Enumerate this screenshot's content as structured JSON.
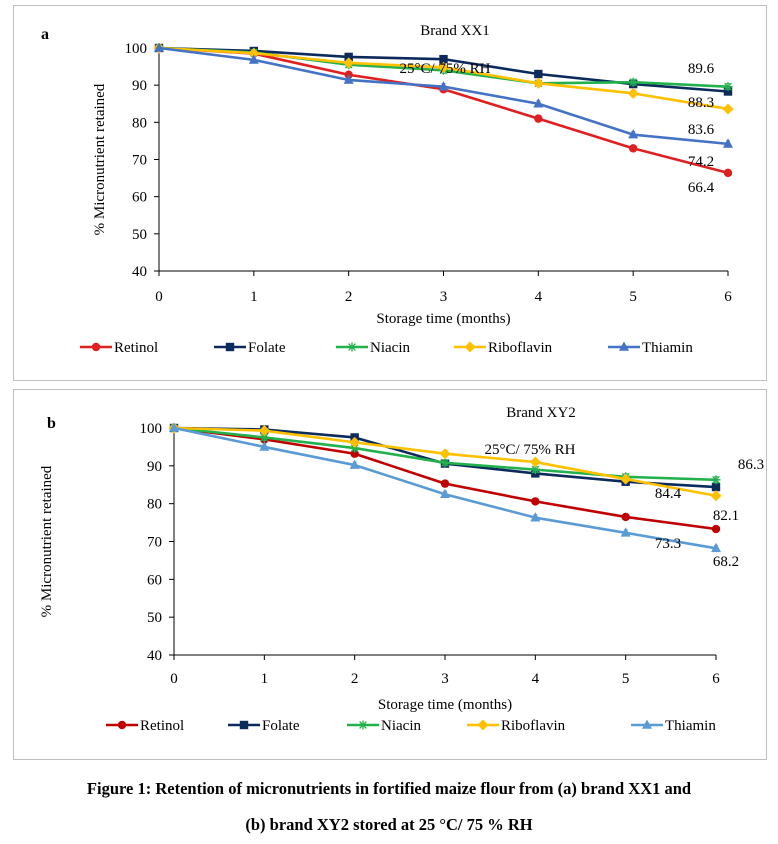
{
  "figure_caption": {
    "line1": "Figure 1: Retention of micronutrients in fortified maize flour from (a) brand XX1 and",
    "line2": "(b) brand XY2 stored at 25 °C/ 75 % RH"
  },
  "colors": {
    "Retinol": "#e02020",
    "Folate": "#0d2a5c",
    "Niacin": "#22b14c",
    "Riboflavin": "#ffc000",
    "Thiamin": "#4472c4",
    "Retinol_b": "#c00000",
    "Thiamin_b": "#5b9bd5"
  },
  "chart_data": [
    {
      "type": "line",
      "panel_letter": "a",
      "title": "Brand XX1",
      "annotation": "25°C/ 75% RH",
      "xlabel": "Storage time (months)",
      "ylabel": "% Micronutrient retained",
      "x": [
        0,
        1,
        2,
        3,
        4,
        5,
        6
      ],
      "xlim": [
        0,
        6
      ],
      "ylim": [
        40,
        100
      ],
      "yticks": [
        40,
        50,
        60,
        70,
        80,
        90,
        100
      ],
      "grid": false,
      "legend_position": "bottom",
      "series": [
        {
          "name": "Retinol",
          "marker": "circle",
          "color_key": "Retinol",
          "values": [
            100,
            98.5,
            92.8,
            88.9,
            81.0,
            73.0,
            66.4
          ]
        },
        {
          "name": "Folate",
          "marker": "square",
          "color_key": "Folate",
          "values": [
            100,
            99.2,
            97.6,
            97.0,
            93.0,
            90.3,
            88.3
          ]
        },
        {
          "name": "Niacin",
          "marker": "star",
          "color_key": "Niacin",
          "values": [
            100,
            98.8,
            95.5,
            94.0,
            90.5,
            90.8,
            89.6
          ]
        },
        {
          "name": "Riboflavin",
          "marker": "diamond",
          "color_key": "Riboflavin",
          "values": [
            100,
            98.6,
            96.0,
            94.8,
            90.5,
            87.8,
            83.6
          ]
        },
        {
          "name": "Thiamin",
          "marker": "triangle",
          "color_key": "Thiamin",
          "values": [
            100,
            96.8,
            91.4,
            89.6,
            85.0,
            76.7,
            74.2
          ]
        }
      ],
      "data_labels": [
        "89.6",
        "88.3",
        "83.6",
        "74.2",
        "66.4"
      ]
    },
    {
      "type": "line",
      "panel_letter": "b",
      "title": "Brand XY2",
      "annotation": "25°C/ 75% RH",
      "xlabel": "Storage  time (months)",
      "ylabel": "% Micronutrient retained",
      "x": [
        0,
        1,
        2,
        3,
        4,
        5,
        6
      ],
      "xlim": [
        0,
        6
      ],
      "ylim": [
        40,
        100
      ],
      "yticks": [
        40,
        50,
        60,
        70,
        80,
        90,
        100
      ],
      "grid": false,
      "legend_position": "bottom",
      "series": [
        {
          "name": "Retinol",
          "marker": "circle",
          "color_key": "Retinol_b",
          "values": [
            100,
            97.0,
            93.2,
            85.3,
            80.6,
            76.5,
            73.3
          ]
        },
        {
          "name": "Folate",
          "marker": "square",
          "color_key": "Folate",
          "values": [
            100,
            99.6,
            97.5,
            90.6,
            88.0,
            85.8,
            84.4
          ]
        },
        {
          "name": "Niacin",
          "marker": "star",
          "color_key": "Niacin",
          "values": [
            100,
            97.5,
            94.7,
            90.8,
            89.0,
            87.1,
            86.3
          ]
        },
        {
          "name": "Riboflavin",
          "marker": "diamond",
          "color_key": "Riboflavin",
          "values": [
            100,
            99.3,
            96.2,
            93.2,
            91.0,
            86.5,
            82.1
          ]
        },
        {
          "name": "Thiamin",
          "marker": "triangle",
          "color_key": "Thiamin_b",
          "values": [
            100,
            95.0,
            90.2,
            82.5,
            76.3,
            72.3,
            68.2
          ]
        }
      ],
      "data_labels": [
        "86.3",
        "84.4",
        "82.1",
        "73.3",
        "68.2"
      ]
    }
  ]
}
